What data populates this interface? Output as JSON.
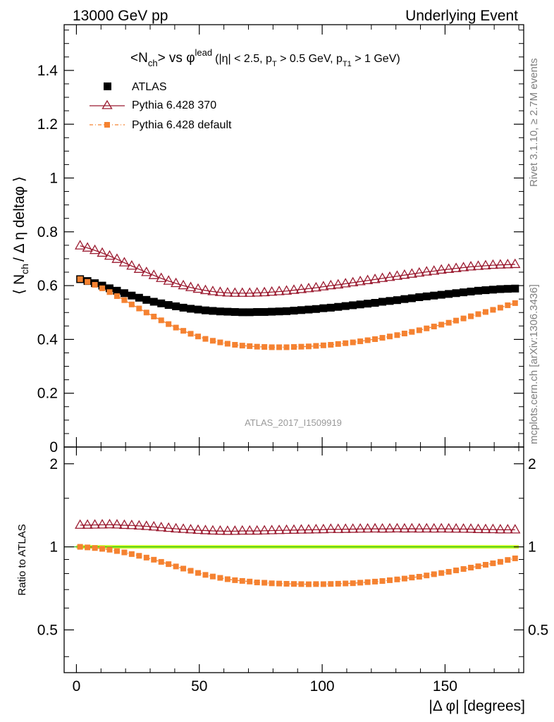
{
  "header": {
    "left": "13000 GeV pp",
    "right": "Underlying Event"
  },
  "side_labels": {
    "rivet": "Rivet 3.1.10, ≥ 2.7M events",
    "mcplots": "mcplots.cern.ch [arXiv:1306.3436]"
  },
  "watermark": "ATLAS_2017_I1509919",
  "title": {
    "main": "<N",
    "main_sub": "ch",
    "vs": "> vs φ",
    "vs_sup": "lead",
    "cuts_a": "(|η| < 2.5, p",
    "cuts_a_sub": "T",
    "cuts_b": " > 0.5 GeV, p",
    "cuts_b_sub": "T1",
    "cuts_c": " > 1 GeV)"
  },
  "axes": {
    "ylabel_pre": "⟨ N",
    "ylabel_sub": "ch",
    "ylabel_post": "/ Δ η deltaφ ⟩",
    "ratio_ylabel": "Ratio to ATLAS",
    "xlabel": "|Δ φ| [degrees]"
  },
  "colors": {
    "atlas": "#000000",
    "py370": "#9b1b30",
    "pydef": "#f58231",
    "band": "#ccff33",
    "band_line": "#00aa00"
  },
  "chart_data": {
    "type": "scatter",
    "x_range": [
      -5,
      182
    ],
    "main_ylim": [
      0,
      1.57
    ],
    "ratio_ylim": [
      0.35,
      2.3
    ],
    "ratio_log": true,
    "x_ticks": [
      0,
      50,
      100,
      150
    ],
    "main_y_ticks": [
      0,
      0.2,
      0.4,
      0.6,
      0.8,
      1,
      1.2,
      1.4
    ],
    "main_y_tick_labels": [
      "0",
      "0.2",
      "0.4",
      "0.6",
      "0.8",
      "1",
      "1.2",
      "1.4"
    ],
    "ratio_y_ticks": [
      0.5,
      1,
      2
    ],
    "ratio_y_tick_labels": [
      "0.5",
      "1",
      "2"
    ],
    "x": [
      1.5,
      4.5,
      7.5,
      10.5,
      13.5,
      16.5,
      19.5,
      22.5,
      25.5,
      28.5,
      31.5,
      34.5,
      37.5,
      40.5,
      43.5,
      46.5,
      49.5,
      52.5,
      55.5,
      58.5,
      61.5,
      64.5,
      67.5,
      70.5,
      73.5,
      76.5,
      79.5,
      82.5,
      85.5,
      88.5,
      91.5,
      94.5,
      97.5,
      100.5,
      103.5,
      106.5,
      109.5,
      112.5,
      115.5,
      118.5,
      121.5,
      124.5,
      127.5,
      130.5,
      133.5,
      136.5,
      139.5,
      142.5,
      145.5,
      148.5,
      151.5,
      154.5,
      157.5,
      160.5,
      163.5,
      166.5,
      169.5,
      172.5,
      175.5,
      178.5
    ],
    "series": [
      {
        "name": "ATLAS",
        "values": [
          0.624,
          0.617,
          0.609,
          0.6,
          0.59,
          0.581,
          0.572,
          0.563,
          0.555,
          0.547,
          0.54,
          0.534,
          0.528,
          0.523,
          0.518,
          0.514,
          0.511,
          0.508,
          0.506,
          0.504,
          0.503,
          0.502,
          0.501,
          0.501,
          0.502,
          0.502,
          0.503,
          0.504,
          0.505,
          0.507,
          0.509,
          0.511,
          0.513,
          0.516,
          0.518,
          0.521,
          0.524,
          0.527,
          0.53,
          0.533,
          0.536,
          0.54,
          0.543,
          0.546,
          0.55,
          0.553,
          0.557,
          0.56,
          0.563,
          0.566,
          0.569,
          0.572,
          0.575,
          0.578,
          0.581,
          0.583,
          0.585,
          0.587,
          0.588,
          0.589
        ]
      },
      {
        "name": "Pythia 6.428 370",
        "values": [
          0.748,
          0.74,
          0.731,
          0.721,
          0.71,
          0.698,
          0.685,
          0.673,
          0.661,
          0.649,
          0.638,
          0.627,
          0.617,
          0.608,
          0.6,
          0.593,
          0.587,
          0.582,
          0.578,
          0.575,
          0.573,
          0.572,
          0.572,
          0.572,
          0.573,
          0.574,
          0.576,
          0.578,
          0.58,
          0.583,
          0.586,
          0.589,
          0.592,
          0.596,
          0.6,
          0.603,
          0.607,
          0.611,
          0.615,
          0.619,
          0.623,
          0.627,
          0.631,
          0.635,
          0.639,
          0.643,
          0.647,
          0.651,
          0.654,
          0.658,
          0.661,
          0.664,
          0.667,
          0.67,
          0.672,
          0.674,
          0.676,
          0.677,
          0.678,
          0.679
        ]
      },
      {
        "name": "Pythia 6.428 default",
        "values": [
          0.624,
          0.614,
          0.603,
          0.59,
          0.576,
          0.561,
          0.546,
          0.53,
          0.515,
          0.5,
          0.485,
          0.471,
          0.457,
          0.444,
          0.432,
          0.421,
          0.411,
          0.402,
          0.395,
          0.389,
          0.384,
          0.38,
          0.377,
          0.375,
          0.373,
          0.372,
          0.371,
          0.371,
          0.371,
          0.372,
          0.373,
          0.374,
          0.376,
          0.378,
          0.38,
          0.383,
          0.386,
          0.389,
          0.393,
          0.397,
          0.401,
          0.406,
          0.411,
          0.416,
          0.422,
          0.428,
          0.434,
          0.441,
          0.448,
          0.455,
          0.462,
          0.47,
          0.478,
          0.486,
          0.494,
          0.502,
          0.51,
          0.518,
          0.527,
          0.535
        ]
      }
    ]
  }
}
